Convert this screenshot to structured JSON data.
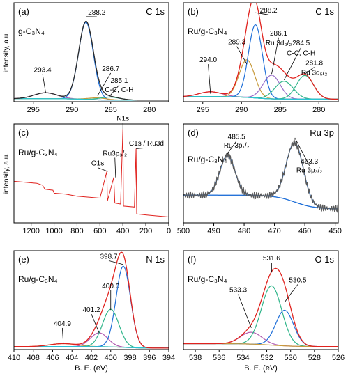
{
  "shared": {
    "ylabel": "intensity, a.u.",
    "xlabel": "B. E. (eV)"
  },
  "chart_data": [
    {
      "id": "a",
      "type": "line",
      "panel_label": "(a)",
      "title": "C 1s",
      "sample_label": "g-C₃N₄",
      "xlabel": "",
      "ylabel": "intensity, a.u.",
      "xlim": [
        297.5,
        277.5
      ],
      "ylim": [
        0,
        100
      ],
      "xticks": [
        295,
        290,
        285,
        280
      ],
      "show_xlabel": false,
      "peaks": [
        {
          "center": 293.4,
          "height": 6,
          "width": 1.5,
          "color": "#b05ab0"
        },
        {
          "center": 288.2,
          "height": 78,
          "width": 0.95,
          "color": "#1f6fd8"
        },
        {
          "center": 286.7,
          "height": 2,
          "width": 1.2,
          "color": "#c89a3c"
        },
        {
          "center": 285.1,
          "height": 3,
          "width": 1.3,
          "color": "#2fb58a"
        }
      ],
      "background_color": "#28c6d3",
      "baseline_level": 3,
      "envelope_color": "#2a2a2a",
      "annotations": [
        {
          "text": "288.2",
          "x": 288.2,
          "y": 86,
          "lx": 286.8,
          "ly": 88
        },
        {
          "text": "293.4",
          "x": 293.4,
          "y": 9,
          "lx": 293.8,
          "ly": 30
        },
        {
          "text": "286.7",
          "x": 286.7,
          "y": 6,
          "lx": 285.0,
          "ly": 31
        },
        {
          "text": "285.1",
          "x": 285.1,
          "y": 6,
          "lx": 283.9,
          "ly": 19
        },
        {
          "text": "C-C, C-H",
          "x": null,
          "y": null,
          "lx": 283.9,
          "ly": 10
        }
      ]
    },
    {
      "id": "b",
      "type": "line",
      "panel_label": "(b)",
      "title": "C 1s",
      "sample_label": "Ru/g-C₃N₄",
      "xlabel": "",
      "ylabel": "",
      "xlim": [
        297.5,
        277.5
      ],
      "ylim": [
        0,
        100
      ],
      "xticks": [
        295,
        290,
        285,
        280
      ],
      "show_xlabel": false,
      "peaks": [
        {
          "center": 294.0,
          "height": 5,
          "width": 1.5,
          "color": "#b05ab0"
        },
        {
          "center": 289.3,
          "height": 38,
          "width": 1.0,
          "color": "#c89a3c"
        },
        {
          "center": 288.2,
          "height": 74,
          "width": 0.9,
          "color": "#1f6fd8"
        },
        {
          "center": 286.1,
          "height": 24,
          "width": 1.1,
          "color": "#9a6fc9"
        },
        {
          "center": 284.5,
          "height": 18,
          "width": 1.2,
          "color": "#2fb58a"
        },
        {
          "center": 281.8,
          "height": 24,
          "width": 1.1,
          "color": "#2fb58a"
        }
      ],
      "background_color": "#28c6d3",
      "baseline_level": 5,
      "envelope_color": "#e0221e",
      "annotations": [
        {
          "text": "288.2",
          "x": 288.2,
          "y": 90,
          "lx": 286.5,
          "ly": 90
        },
        {
          "text": "289.3",
          "x": 289.3,
          "y": 38,
          "lx": 290.6,
          "ly": 58
        },
        {
          "text": "294.0",
          "x": 294.0,
          "y": 8,
          "lx": 294.3,
          "ly": 40
        },
        {
          "text": "286.1",
          "x": 286.1,
          "y": 28,
          "lx": 285.2,
          "ly": 67
        },
        {
          "text": "Ru 3d₃/₂",
          "x": null,
          "y": null,
          "lx": 285.2,
          "ly": 57
        },
        {
          "text": "284.5",
          "x": 284.5,
          "y": 22,
          "lx": 282.3,
          "ly": 57
        },
        {
          "text": "C-C, C-H",
          "x": null,
          "y": null,
          "lx": 282.3,
          "ly": 47
        },
        {
          "text": "281.8",
          "x": 281.8,
          "y": 28,
          "lx": 280.6,
          "ly": 37
        },
        {
          "text": "Ru 3d₅/₂",
          "x": null,
          "y": null,
          "lx": 280.6,
          "ly": 27
        }
      ]
    },
    {
      "id": "c",
      "type": "line",
      "panel_label": "(c)",
      "title": "",
      "sample_label": "Ru/g-C₃N₄",
      "xlabel": "",
      "ylabel": "intensity, a.u.",
      "xlim": [
        1350,
        0
      ],
      "ylim": [
        0,
        100
      ],
      "xticks": [
        1200,
        1000,
        800,
        600,
        400,
        200,
        0
      ],
      "show_xlabel": false,
      "survey": true,
      "envelope_color": "#e0221e",
      "survey_points": [
        [
          1350,
          42
        ],
        [
          1250,
          41
        ],
        [
          1150,
          40
        ],
        [
          1100,
          38
        ],
        [
          1080,
          34
        ],
        [
          1010,
          33
        ],
        [
          1000,
          30
        ],
        [
          900,
          29
        ],
        [
          800,
          27
        ],
        [
          700,
          26
        ],
        [
          600,
          25
        ],
        [
          540,
          52
        ],
        [
          535,
          22
        ],
        [
          480,
          46
        ],
        [
          470,
          20
        ],
        [
          420,
          19
        ],
        [
          400,
          95
        ],
        [
          395,
          17
        ],
        [
          300,
          16
        ],
        [
          285,
          75
        ],
        [
          280,
          9
        ],
        [
          200,
          8
        ],
        [
          100,
          7
        ],
        [
          0,
          6
        ]
      ],
      "annotations": [
        {
          "text": "N1s",
          "x": 400,
          "y": 95,
          "lx": 400,
          "ly": 103
        },
        {
          "text": "Ru3p₃/₂",
          "x": 463,
          "y": 46,
          "lx": 470,
          "ly": 68
        },
        {
          "text": "O1s",
          "x": 532,
          "y": 52,
          "lx": 620,
          "ly": 58
        },
        {
          "text": "C1s / Ru3d",
          "x": 285,
          "y": 75,
          "lx": 195,
          "ly": 78
        }
      ]
    },
    {
      "id": "d",
      "type": "line",
      "panel_label": "(d)",
      "title": "Ru 3p",
      "sample_label": "Ru/g-C₃N₄",
      "xlabel": "",
      "ylabel": "",
      "xlim": [
        500,
        449
      ],
      "ylim": [
        0,
        100
      ],
      "xticks": [
        500,
        490,
        480,
        470,
        460,
        450
      ],
      "show_xlabel": false,
      "peaks": [
        {
          "center": 485.5,
          "height": 40,
          "width": 2.5,
          "color": "#1f6fd8"
        },
        {
          "center": 463.3,
          "height": 60,
          "width": 2.8,
          "color": "#1f6fd8"
        }
      ],
      "background_color": "#1f6fd8",
      "baseline_level": 28,
      "envelope_color": "#5a5a5a",
      "annotations": [
        {
          "text": "485.5",
          "x": 485.5,
          "y": 70,
          "lx": 482.5,
          "ly": 85
        },
        {
          "text": "Ru 3p₁/₂",
          "x": null,
          "y": null,
          "lx": 482.5,
          "ly": 76
        },
        {
          "text": "463.3",
          "x": 463.3,
          "y": 86,
          "lx": 458.5,
          "ly": 60
        },
        {
          "text": "Ru 3p₃/₂",
          "x": null,
          "y": null,
          "lx": 458.5,
          "ly": 51
        }
      ]
    },
    {
      "id": "e",
      "type": "line",
      "panel_label": "(e)",
      "title": "N 1s",
      "sample_label": "Ru/g-C₃N₄",
      "xlabel": "B. E. (eV)",
      "ylabel": "",
      "xlim": [
        410,
        394
      ],
      "ylim": [
        0,
        100
      ],
      "xticks": [
        410,
        408,
        406,
        404,
        402,
        400,
        398,
        396,
        394
      ],
      "show_xlabel": true,
      "peaks": [
        {
          "center": 404.9,
          "height": 3,
          "width": 1.4,
          "color": "#c89a3c"
        },
        {
          "center": 401.2,
          "height": 14,
          "width": 0.9,
          "color": "#b05ab0"
        },
        {
          "center": 400.0,
          "height": 38,
          "width": 0.85,
          "color": "#2fb58a"
        },
        {
          "center": 398.7,
          "height": 82,
          "width": 0.75,
          "color": "#1f6fd8"
        }
      ],
      "background_color": "#28c6d3",
      "baseline_level": 3,
      "envelope_color": "#e0221e",
      "annotations": [
        {
          "text": "398.7",
          "x": 398.7,
          "y": 86,
          "lx": 400.2,
          "ly": 92
        },
        {
          "text": "400.0",
          "x": 400.0,
          "y": 40,
          "lx": 400.0,
          "ly": 62
        },
        {
          "text": "401.2",
          "x": 401.2,
          "y": 17,
          "lx": 402.0,
          "ly": 38
        },
        {
          "text": "404.9",
          "x": 404.9,
          "y": 6,
          "lx": 405.0,
          "ly": 24
        }
      ]
    },
    {
      "id": "f",
      "type": "line",
      "panel_label": "(f)",
      "title": "O 1s",
      "sample_label": "Ru/g-C₃N₄",
      "xlabel": "B. E. (eV)",
      "ylabel": "",
      "xlim": [
        539,
        526
      ],
      "ylim": [
        0,
        100
      ],
      "xticks": [
        538,
        536,
        534,
        532,
        530,
        528,
        526
      ],
      "show_xlabel": true,
      "peaks": [
        {
          "center": 533.3,
          "height": 12,
          "width": 0.9,
          "color": "#b05ab0"
        },
        {
          "center": 531.6,
          "height": 60,
          "width": 0.85,
          "color": "#2fb58a"
        },
        {
          "center": 530.5,
          "height": 36,
          "width": 0.75,
          "color": "#1f6fd8"
        }
      ],
      "background_color": "#c89a3c",
      "baseline_level": 6,
      "envelope_color": "#e0221e",
      "annotations": [
        {
          "text": "531.6",
          "x": 531.6,
          "y": 78,
          "lx": 531.6,
          "ly": 90
        },
        {
          "text": "533.3",
          "x": 533.3,
          "y": 22,
          "lx": 534.4,
          "ly": 58
        },
        {
          "text": "530.5",
          "x": 530.5,
          "y": 48,
          "lx": 529.4,
          "ly": 68
        }
      ]
    }
  ]
}
